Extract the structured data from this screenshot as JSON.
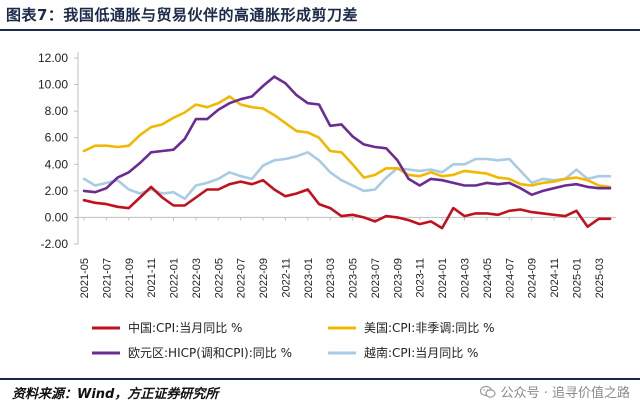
{
  "header": {
    "title": "图表7：我国低通胀与贸易伙伴的高通胀形成剪刀差"
  },
  "footer": {
    "source": "资料来源：Wind，方正证券研究所",
    "watermark": "公众号 · 追寻价值之路",
    "watermark_icon": "wechat-icon"
  },
  "colors": {
    "china": "#c0111f",
    "usa": "#f2b800",
    "euro": "#6a2c91",
    "vietnam": "#a9cbe4",
    "axis": "#bfbfbf"
  },
  "chart_data": {
    "type": "line",
    "title": "",
    "xlabel": "",
    "ylabel": "",
    "ylim": [
      -2,
      12
    ],
    "yticks": [
      "12.00",
      "10.00",
      "8.00",
      "6.00",
      "4.00",
      "2.00",
      "0.00",
      "-2.00"
    ],
    "ytick_values": [
      12,
      10,
      8,
      6,
      4,
      2,
      0,
      -2
    ],
    "x_tick_labels": [
      "2021-05",
      "2021-07",
      "2021-09",
      "2021-11",
      "2022-01",
      "2022-03",
      "2022-05",
      "2022-07",
      "2022-09",
      "2022-11",
      "2023-01",
      "2023-03",
      "2023-05",
      "2023-07",
      "2023-09",
      "2023-11",
      "2024-01",
      "2024-03",
      "2024-05",
      "2024-07",
      "2024-09",
      "2024-11",
      "2025-01",
      "2025-03"
    ],
    "x": [
      "2021-05",
      "2021-06",
      "2021-07",
      "2021-08",
      "2021-09",
      "2021-10",
      "2021-11",
      "2021-12",
      "2022-01",
      "2022-02",
      "2022-03",
      "2022-04",
      "2022-05",
      "2022-06",
      "2022-07",
      "2022-08",
      "2022-09",
      "2022-10",
      "2022-11",
      "2022-12",
      "2023-01",
      "2023-02",
      "2023-03",
      "2023-04",
      "2023-05",
      "2023-06",
      "2023-07",
      "2023-08",
      "2023-09",
      "2023-10",
      "2023-11",
      "2023-12",
      "2024-01",
      "2024-02",
      "2024-03",
      "2024-04",
      "2024-05",
      "2024-06",
      "2024-07",
      "2024-08",
      "2024-09",
      "2024-10",
      "2024-11",
      "2024-12",
      "2025-01",
      "2025-02",
      "2025-03",
      "2025-04"
    ],
    "legend_position": "bottom",
    "grid": false,
    "series": [
      {
        "key": "china",
        "name": "中国:CPI:当月同比 %",
        "values": [
          1.3,
          1.1,
          1.0,
          0.8,
          0.7,
          1.5,
          2.3,
          1.5,
          0.9,
          0.9,
          1.5,
          2.1,
          2.1,
          2.5,
          2.7,
          2.5,
          2.8,
          2.1,
          1.6,
          1.8,
          2.1,
          1.0,
          0.7,
          0.1,
          0.2,
          0.0,
          -0.3,
          0.1,
          0.0,
          -0.2,
          -0.5,
          -0.3,
          -0.8,
          0.7,
          0.1,
          0.3,
          0.3,
          0.2,
          0.5,
          0.6,
          0.4,
          0.3,
          0.2,
          0.1,
          0.5,
          -0.7,
          -0.1,
          -0.1
        ]
      },
      {
        "key": "usa",
        "name": "美国:CPI:非季调:同比 %",
        "values": [
          5.0,
          5.4,
          5.4,
          5.3,
          5.4,
          6.2,
          6.8,
          7.0,
          7.5,
          7.9,
          8.5,
          8.3,
          8.6,
          9.1,
          8.5,
          8.3,
          8.2,
          7.7,
          7.1,
          6.5,
          6.4,
          6.0,
          5.0,
          4.9,
          4.0,
          3.0,
          3.2,
          3.7,
          3.7,
          3.2,
          3.1,
          3.4,
          3.1,
          3.2,
          3.5,
          3.4,
          3.3,
          3.0,
          2.9,
          2.5,
          2.4,
          2.6,
          2.7,
          2.9,
          3.0,
          2.8,
          2.4,
          2.3
        ]
      },
      {
        "key": "euro",
        "name": "欧元区:HICP(调和CPI):同比 %",
        "values": [
          2.0,
          1.9,
          2.2,
          3.0,
          3.4,
          4.1,
          4.9,
          5.0,
          5.1,
          5.9,
          7.4,
          7.4,
          8.1,
          8.6,
          8.9,
          9.1,
          9.9,
          10.6,
          10.1,
          9.2,
          8.6,
          8.5,
          6.9,
          7.0,
          6.1,
          5.5,
          5.3,
          5.2,
          4.3,
          2.9,
          2.4,
          2.9,
          2.8,
          2.6,
          2.4,
          2.4,
          2.6,
          2.5,
          2.6,
          2.2,
          1.7,
          2.0,
          2.2,
          2.4,
          2.5,
          2.3,
          2.2,
          2.2
        ]
      },
      {
        "key": "vietnam",
        "name": "越南:CPI:当月同比 %",
        "values": [
          2.9,
          2.4,
          2.6,
          2.8,
          2.1,
          1.8,
          2.1,
          1.8,
          1.9,
          1.4,
          2.4,
          2.6,
          2.9,
          3.4,
          3.1,
          2.9,
          3.9,
          4.3,
          4.4,
          4.6,
          4.9,
          4.3,
          3.4,
          2.8,
          2.4,
          2.0,
          2.1,
          3.0,
          3.7,
          3.6,
          3.5,
          3.6,
          3.4,
          4.0,
          4.0,
          4.4,
          4.4,
          4.3,
          4.4,
          3.5,
          2.6,
          2.9,
          2.8,
          2.9,
          3.6,
          2.9,
          3.1,
          3.1
        ]
      }
    ]
  }
}
